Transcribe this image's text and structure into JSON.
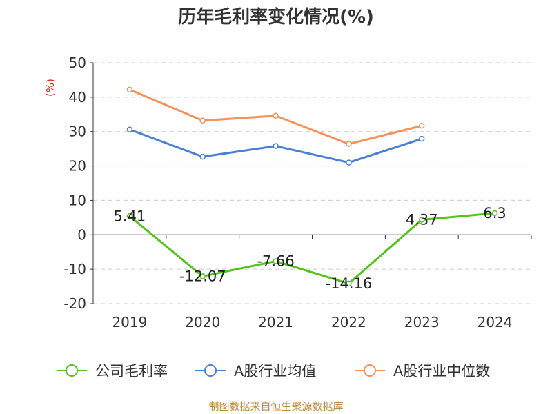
{
  "chart_data": {
    "type": "line",
    "title": "历年毛利率变化情况(%)",
    "ylabel": "(%)",
    "categories": [
      "2019",
      "2020",
      "2021",
      "2022",
      "2023",
      "2024"
    ],
    "ylim": [
      -20,
      50
    ],
    "yticks": [
      50,
      40,
      30,
      20,
      10,
      0,
      -10,
      -20
    ],
    "grid": true,
    "legend_position": "bottom",
    "series": [
      {
        "name": "公司毛利率",
        "color": "#52c41a",
        "values": [
          5.41,
          -12.07,
          -7.66,
          -14.16,
          4.37,
          6.3
        ],
        "labels": [
          "5.41",
          "-12.07",
          "-7.66",
          "-14.16",
          "4.37",
          "6.3"
        ]
      },
      {
        "name": "A股行业均值",
        "color": "#4a7fd6",
        "values": [
          30.6,
          22.7,
          25.8,
          21.0,
          27.9,
          null
        ]
      },
      {
        "name": "A股行业中位数",
        "color": "#f5915a",
        "values": [
          42.2,
          33.2,
          34.6,
          26.4,
          31.7,
          null
        ]
      }
    ]
  },
  "footer": {
    "source": "制图数据来自恒生聚源数据库"
  }
}
